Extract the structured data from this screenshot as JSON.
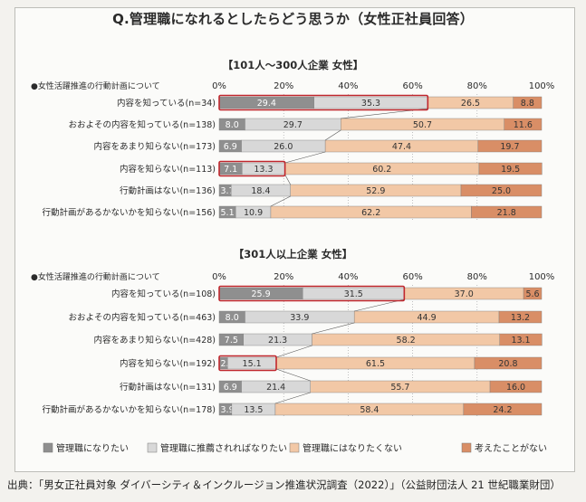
{
  "title": "Q.管理職になれるとしたらどう思うか（女性正社員回答）",
  "source": "出典：「男女正社員対象 ダイバーシティ＆インクルージョン推進状況調査（2022）」（公益財団法人 21 世紀職業財団）",
  "colors": {
    "want": "#8f8f8f",
    "recommended": "#d8d8d8",
    "dont_want": "#f2c8a6",
    "never_thought": "#d98e66",
    "highlight": "#c0272d"
  },
  "chart_data": [
    {
      "type": "bar",
      "stacked": true,
      "orientation": "horizontal",
      "title": "【101人〜300人企業 女性】",
      "row_header": "●女性活躍推進の行動計画について",
      "xlim": [
        0,
        100
      ],
      "x_ticks": [
        "0%",
        "20%",
        "40%",
        "60%",
        "80%",
        "100%"
      ],
      "categories": [
        "内容を知っている(n=34)",
        "おおよその内容を知っている(n=138)",
        "内容をあまり知らない(n=173)",
        "内容を知らない(n=113)",
        "行動計画はない(n=136)",
        "行動計画があるかないかを知らない(n=156)"
      ],
      "series": [
        {
          "name": "管理職になりたい",
          "values": [
            29.4,
            8.0,
            6.9,
            7.1,
            3.7,
            5.1
          ]
        },
        {
          "name": "管理職に推薦されればなりたい",
          "values": [
            35.3,
            29.7,
            26.0,
            13.3,
            18.4,
            10.9
          ]
        },
        {
          "name": "管理職にはなりたくない",
          "values": [
            26.5,
            50.7,
            47.4,
            60.2,
            52.9,
            62.2
          ]
        },
        {
          "name": "考えたことがない",
          "values": [
            8.8,
            11.6,
            19.7,
            19.5,
            25.0,
            21.8
          ]
        }
      ]
    },
    {
      "type": "bar",
      "stacked": true,
      "orientation": "horizontal",
      "title": "【301人以上企業 女性】",
      "row_header": "●女性活躍推進の行動計画について",
      "xlim": [
        0,
        100
      ],
      "x_ticks": [
        "0%",
        "20%",
        "40%",
        "60%",
        "80%",
        "100%"
      ],
      "categories": [
        "内容を知っている(n=108)",
        "おおよその内容を知っている(n=463)",
        "内容をあまり知らない(n=428)",
        "内容を知らない(n=192)",
        "行動計画はない(n=131)",
        "行動計画があるかないかを知らない(n=178)"
      ],
      "series": [
        {
          "name": "管理職になりたい",
          "values": [
            25.9,
            8.0,
            7.5,
            2.6,
            6.9,
            3.9
          ]
        },
        {
          "name": "管理職に推薦されればなりたい",
          "values": [
            31.5,
            33.9,
            21.3,
            15.1,
            21.4,
            13.5
          ]
        },
        {
          "name": "管理職にはなりたくない",
          "values": [
            37.0,
            44.9,
            58.2,
            61.5,
            55.7,
            58.4
          ]
        },
        {
          "name": "考えたことがない",
          "values": [
            5.6,
            13.2,
            13.1,
            20.8,
            16.0,
            24.2
          ]
        }
      ]
    }
  ]
}
